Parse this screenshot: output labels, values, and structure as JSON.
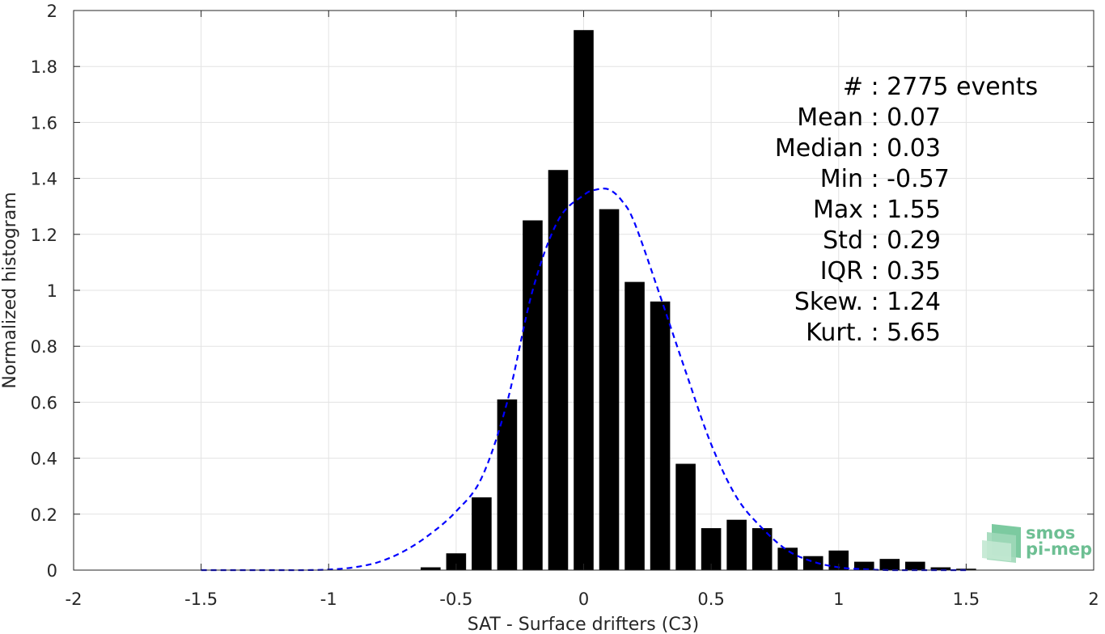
{
  "chart_data": {
    "type": "bar",
    "xlabel": "SAT - Surface drifters (C3)",
    "ylabel": "Normalized histogram",
    "xlim": [
      -2,
      2
    ],
    "ylim": [
      0,
      2
    ],
    "grid": true,
    "xticks": [
      -2,
      -1.5,
      -1,
      -0.5,
      0,
      0.5,
      1,
      1.5,
      2
    ],
    "xtick_labels": [
      "-2",
      "-1.5",
      "-1",
      "-0.5",
      "0",
      "0.5",
      "1",
      "1.5",
      "2"
    ],
    "yticks": [
      0,
      0.2,
      0.4,
      0.6,
      0.8,
      1,
      1.2,
      1.4,
      1.6,
      1.8,
      2
    ],
    "ytick_labels": [
      "0",
      "0.2",
      "0.4",
      "0.6",
      "0.8",
      "1",
      "1.2",
      "1.4",
      "1.6",
      "1.8",
      "2"
    ],
    "bar_color": "#000000",
    "bin_width": 0.1,
    "bars": [
      {
        "x": -0.6,
        "y": 0.01
      },
      {
        "x": -0.5,
        "y": 0.06
      },
      {
        "x": -0.4,
        "y": 0.26
      },
      {
        "x": -0.3,
        "y": 0.61
      },
      {
        "x": -0.2,
        "y": 1.25
      },
      {
        "x": -0.1,
        "y": 1.43
      },
      {
        "x": 0.0,
        "y": 1.93
      },
      {
        "x": 0.1,
        "y": 1.29
      },
      {
        "x": 0.2,
        "y": 1.03
      },
      {
        "x": 0.3,
        "y": 0.96
      },
      {
        "x": 0.4,
        "y": 0.38
      },
      {
        "x": 0.5,
        "y": 0.15
      },
      {
        "x": 0.6,
        "y": 0.18
      },
      {
        "x": 0.7,
        "y": 0.15
      },
      {
        "x": 0.8,
        "y": 0.08
      },
      {
        "x": 0.9,
        "y": 0.05
      },
      {
        "x": 1.0,
        "y": 0.07
      },
      {
        "x": 1.1,
        "y": 0.03
      },
      {
        "x": 1.2,
        "y": 0.04
      },
      {
        "x": 1.3,
        "y": 0.03
      },
      {
        "x": 1.4,
        "y": 0.01
      },
      {
        "x": 1.5,
        "y": 0.005
      }
    ],
    "fit_curve": {
      "color": "#0000ff",
      "style": "dashed",
      "x": [
        -1.5,
        -1.4,
        -1.3,
        -1.2,
        -1.1,
        -1.0,
        -0.9,
        -0.8,
        -0.7,
        -0.6,
        -0.5,
        -0.4,
        -0.3,
        -0.2,
        -0.1,
        0.0,
        0.05,
        0.1,
        0.15,
        0.2,
        0.3,
        0.4,
        0.5,
        0.6,
        0.7,
        0.8,
        0.9,
        1.0,
        1.1,
        1.2,
        1.3,
        1.4,
        1.5
      ],
      "y": [
        0.0,
        0.0,
        0.0,
        0.0,
        0.0,
        0.002,
        0.01,
        0.03,
        0.07,
        0.13,
        0.21,
        0.33,
        0.6,
        1.0,
        1.25,
        1.34,
        1.36,
        1.36,
        1.32,
        1.24,
        0.98,
        0.71,
        0.45,
        0.26,
        0.15,
        0.07,
        0.03,
        0.01,
        0.003,
        0.0,
        0.0,
        0.0,
        0.0
      ]
    },
    "annotations": [
      "#  : 2775 events",
      "Mean : 0.07",
      "Median : 0.03",
      "Min : -0.57",
      "Max : 1.55",
      "Std : 0.29",
      "IQR : 0.35",
      "Skew. : 1.24",
      "Kurt. : 5.65"
    ]
  },
  "logo": {
    "line1": "smos",
    "line2": "pi-mep",
    "color": "#4caf80"
  }
}
